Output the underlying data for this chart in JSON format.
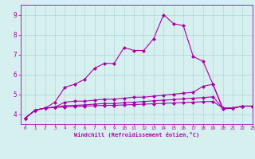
{
  "xlabel": "Windchill (Refroidissement éolien,°C)",
  "xlim": [
    -0.5,
    23
  ],
  "ylim": [
    3.5,
    9.5
  ],
  "yticks": [
    4,
    5,
    6,
    7,
    8,
    9
  ],
  "xticks": [
    0,
    1,
    2,
    3,
    4,
    5,
    6,
    7,
    8,
    9,
    10,
    11,
    12,
    13,
    14,
    15,
    16,
    17,
    18,
    19,
    20,
    21,
    22,
    23
  ],
  "background_color": "#d6efef",
  "grid_color": "#b0d8d8",
  "line_color": "#aa00aa",
  "lines": [
    [
      3.8,
      4.2,
      4.3,
      4.6,
      5.35,
      5.5,
      5.75,
      6.3,
      6.55,
      6.55,
      7.35,
      7.2,
      7.2,
      7.8,
      9.0,
      8.55,
      8.45,
      6.9,
      6.65,
      5.5,
      4.25,
      4.3,
      4.4,
      4.4
    ],
    [
      3.8,
      4.2,
      4.3,
      4.35,
      4.6,
      4.65,
      4.65,
      4.7,
      4.75,
      4.75,
      4.8,
      4.85,
      4.85,
      4.9,
      4.95,
      5.0,
      5.05,
      5.1,
      5.4,
      5.5,
      4.3,
      4.3,
      4.4,
      4.4
    ],
    [
      3.8,
      4.2,
      4.3,
      4.35,
      4.42,
      4.44,
      4.46,
      4.5,
      4.53,
      4.53,
      4.57,
      4.6,
      4.63,
      4.67,
      4.7,
      4.73,
      4.77,
      4.8,
      4.83,
      4.87,
      4.3,
      4.3,
      4.4,
      4.4
    ],
    [
      3.8,
      4.2,
      4.3,
      4.33,
      4.36,
      4.38,
      4.4,
      4.42,
      4.44,
      4.44,
      4.46,
      4.48,
      4.5,
      4.52,
      4.54,
      4.56,
      4.58,
      4.6,
      4.62,
      4.64,
      4.3,
      4.3,
      4.4,
      4.4
    ]
  ],
  "marker": "D",
  "markersize": 2.0,
  "linewidth": 0.8
}
